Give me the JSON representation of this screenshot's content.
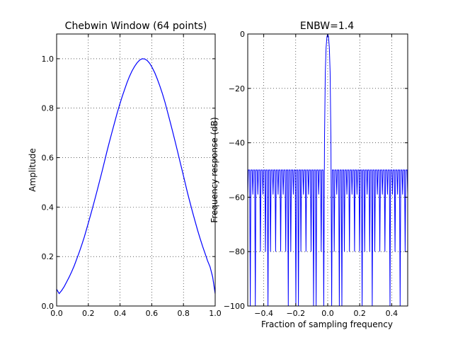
{
  "chart_data": [
    {
      "type": "line",
      "title": "Chebwin Window (64 points)",
      "xlabel": "",
      "ylabel": "Amplitude",
      "xlim": [
        0.0,
        1.0
      ],
      "ylim": [
        0.0,
        1.1
      ],
      "xticks": [
        0.0,
        0.2,
        0.4,
        0.6,
        0.8,
        1.0
      ],
      "xtick_labels": [
        "0.0",
        "0.2",
        "0.4",
        "0.6",
        "0.8",
        "1.0"
      ],
      "yticks": [
        0.0,
        0.2,
        0.4,
        0.6,
        0.8,
        1.0
      ],
      "ytick_labels": [
        "0.0",
        "0.2",
        "0.4",
        "0.6",
        "0.8",
        "1.0"
      ],
      "grid": true,
      "line_color": "#0000ff",
      "series": [
        {
          "x": [
            0.0,
            0.016,
            0.032,
            0.048,
            0.063,
            0.079,
            0.095,
            0.111,
            0.127,
            0.143,
            0.159,
            0.175,
            0.19,
            0.206,
            0.222,
            0.238,
            0.254,
            0.27,
            0.286,
            0.302,
            0.317,
            0.333,
            0.349,
            0.365,
            0.381,
            0.397,
            0.413,
            0.429,
            0.444,
            0.46,
            0.476,
            0.492,
            0.508,
            0.524,
            0.54,
            0.556,
            0.571,
            0.587,
            0.603,
            0.619,
            0.635,
            0.651,
            0.667,
            0.683,
            0.698,
            0.714,
            0.73,
            0.746,
            0.762,
            0.778,
            0.794,
            0.81,
            0.825,
            0.841,
            0.857,
            0.873,
            0.889,
            0.905,
            0.921,
            0.937,
            0.952,
            0.968,
            0.984,
            1.0
          ],
          "y": [
            0.068,
            0.05,
            0.063,
            0.079,
            0.097,
            0.117,
            0.139,
            0.163,
            0.19,
            0.218,
            0.248,
            0.28,
            0.314,
            0.349,
            0.386,
            0.424,
            0.463,
            0.503,
            0.543,
            0.584,
            0.624,
            0.664,
            0.703,
            0.741,
            0.778,
            0.813,
            0.846,
            0.876,
            0.904,
            0.929,
            0.951,
            0.969,
            0.984,
            0.995,
            1.0,
            0.999,
            0.993,
            0.981,
            0.964,
            0.943,
            0.918,
            0.89,
            0.859,
            0.825,
            0.788,
            0.75,
            0.71,
            0.669,
            0.627,
            0.584,
            0.542,
            0.5,
            0.459,
            0.419,
            0.38,
            0.343,
            0.307,
            0.273,
            0.241,
            0.211,
            0.183,
            0.158,
            0.118,
            0.05
          ]
        }
      ]
    },
    {
      "type": "line",
      "title": "ENBW=1.4",
      "xlabel": "Fraction of sampling frequency",
      "ylabel": "Frequency response (dB)",
      "xlim": [
        -0.5,
        0.5
      ],
      "ylim": [
        -100,
        0
      ],
      "xticks": [
        -0.4,
        -0.2,
        0.0,
        0.2,
        0.4
      ],
      "xtick_labels": [
        "−0.4",
        "−0.2",
        "0.0",
        "0.2",
        "0.4"
      ],
      "yticks": [
        -100,
        -80,
        -60,
        -40,
        -20,
        0
      ],
      "ytick_labels": [
        "−100",
        "−80",
        "−60",
        "−40",
        "−20",
        "0"
      ],
      "grid": true,
      "line_color": "#0000ff",
      "mainlobe_halfwidth": 0.025,
      "sidelobe_level_db": -50,
      "sidelobe_count_per_side": 30,
      "deep_nulls_x": [
        -0.48,
        -0.45,
        -0.37,
        -0.25,
        -0.19,
        -0.08,
        0.08,
        0.21,
        0.28,
        0.39,
        0.45
      ],
      "series": [
        {
          "x": [
            -0.02,
            -0.015,
            -0.01,
            -0.005,
            0.0,
            0.005,
            0.01,
            0.015,
            0.02
          ],
          "y": [
            -38.0,
            -14.0,
            -5.0,
            -1.0,
            0.0,
            -1.0,
            -5.0,
            -14.0,
            -38.0
          ]
        }
      ]
    }
  ]
}
